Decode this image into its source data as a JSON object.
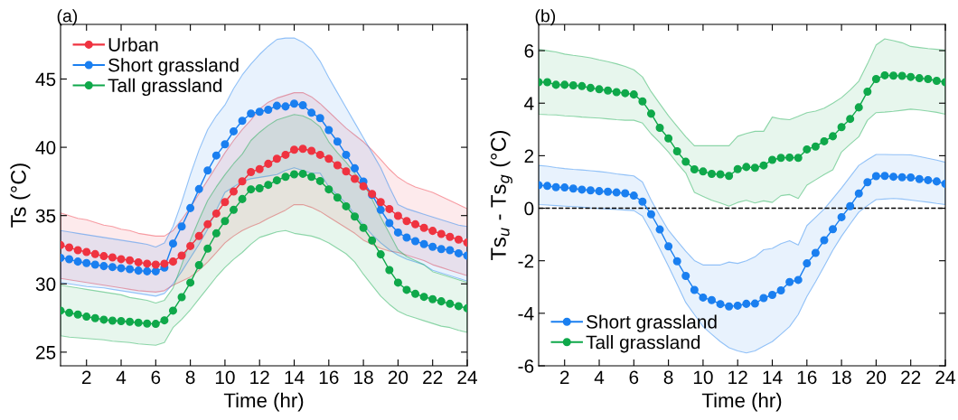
{
  "chart_data": [
    {
      "type": "line",
      "title": "(a)",
      "xlabel": "Time (hr)",
      "ylabel": "Ts (°C)",
      "legend": "top left",
      "marker": "circle",
      "line_style": "solid",
      "grid": false,
      "xlim": [
        0.5,
        24
      ],
      "xticks": [
        2,
        4,
        6,
        8,
        10,
        12,
        14,
        16,
        18,
        20,
        22,
        24
      ],
      "ylim": [
        24,
        49
      ],
      "yticks": [
        25,
        30,
        35,
        40,
        45
      ],
      "x": [
        0.5,
        1,
        1.5,
        2,
        2.5,
        3,
        3.5,
        4,
        4.5,
        5,
        5.5,
        6,
        6.5,
        7,
        7.5,
        8,
        8.5,
        9,
        9.5,
        10,
        10.5,
        11,
        11.5,
        12,
        12.5,
        13,
        13.5,
        14,
        14.5,
        15,
        15.5,
        16,
        16.5,
        17,
        17.5,
        18,
        18.5,
        19,
        19.5,
        20,
        20.5,
        21,
        21.5,
        22,
        22.5,
        23,
        23.5,
        24
      ],
      "series": [
        {
          "name": "Urban",
          "color": "#ef3340",
          "values": [
            32.84,
            32.66,
            32.47,
            32.33,
            32.18,
            32.03,
            31.94,
            31.81,
            31.72,
            31.58,
            31.48,
            31.41,
            31.48,
            31.63,
            32.07,
            32.77,
            33.5,
            34.36,
            35.15,
            35.99,
            36.76,
            37.51,
            38.19,
            38.4,
            38.79,
            39.16,
            39.45,
            39.82,
            39.89,
            39.74,
            39.45,
            39.16,
            38.68,
            38.24,
            37.69,
            37.14,
            36.59,
            35.99,
            35.48,
            34.98,
            34.6,
            34.36,
            34.1,
            33.88,
            33.66,
            33.44,
            33.24,
            33.02
          ],
          "upper": [
            35.2,
            35.0,
            34.8,
            34.7,
            34.5,
            34.3,
            34.2,
            34.0,
            33.9,
            33.7,
            33.6,
            33.5,
            33.5,
            33.9,
            34.7,
            35.6,
            36.6,
            37.6,
            38.6,
            39.6,
            40.5,
            41.3,
            42.0,
            42.8,
            43.3,
            43.6,
            43.8,
            44.0,
            44.0,
            43.7,
            43.2,
            42.6,
            42.0,
            41.4,
            40.9,
            40.4,
            39.8,
            39.1,
            38.4,
            37.8,
            37.4,
            37.1,
            36.9,
            36.7,
            36.4,
            36.1,
            35.8,
            35.5
          ],
          "lower": [
            30.4,
            30.3,
            30.2,
            30.1,
            30.0,
            29.9,
            29.8,
            29.7,
            29.6,
            29.5,
            29.45,
            29.4,
            29.5,
            29.9,
            30.2,
            30.5,
            31.0,
            31.6,
            32.3,
            33.0,
            33.5,
            33.9,
            34.2,
            34.45,
            34.8,
            35.1,
            35.4,
            35.8,
            35.8,
            35.6,
            35.3,
            34.9,
            34.5,
            34.1,
            33.7,
            33.2,
            32.9,
            32.6,
            32.4,
            32.3,
            32.1,
            31.9,
            31.7,
            31.4,
            31.2,
            31.0,
            30.8,
            30.6
          ]
        },
        {
          "name": "Short grassland",
          "color": "#1a7ff0",
          "values": [
            31.9,
            31.8,
            31.63,
            31.52,
            31.41,
            31.3,
            31.23,
            31.15,
            31.08,
            30.97,
            30.92,
            30.92,
            31.19,
            32.95,
            34.2,
            35.55,
            36.94,
            38.3,
            39.4,
            40.22,
            41.17,
            41.94,
            42.47,
            42.6,
            42.75,
            43.04,
            42.99,
            43.2,
            43.08,
            42.53,
            42.14,
            41.26,
            40.42,
            39.45,
            38.46,
            37.49,
            36.52,
            35.42,
            34.45,
            33.76,
            33.39,
            33.13,
            32.91,
            32.71,
            32.55,
            32.47,
            32.24,
            32.07
          ],
          "upper": [
            33.9,
            33.8,
            33.7,
            33.6,
            33.5,
            33.4,
            33.3,
            33.2,
            33.1,
            33.0,
            32.9,
            32.7,
            33.0,
            34.2,
            36.0,
            38.0,
            39.8,
            41.3,
            42.3,
            43.1,
            44.3,
            45.3,
            46.1,
            46.8,
            47.4,
            47.9,
            48.0,
            48.0,
            47.7,
            47.2,
            46.3,
            45.1,
            44.0,
            42.9,
            41.8,
            40.7,
            39.6,
            38.5,
            37.1,
            35.8,
            35.5,
            35.3,
            35.1,
            34.9,
            34.7,
            34.5,
            34.3,
            34.2
          ],
          "lower": [
            30.1,
            30.0,
            29.9,
            29.8,
            29.75,
            29.7,
            29.6,
            29.5,
            29.4,
            29.3,
            29.2,
            29.1,
            29.3,
            30.0,
            30.9,
            31.9,
            32.9,
            34.0,
            35.4,
            36.7,
            37.1,
            37.5,
            37.7,
            37.8,
            37.9,
            38.0,
            38.3,
            38.5,
            38.3,
            38.1,
            38.1,
            37.1,
            36.5,
            35.9,
            35.1,
            34.3,
            33.6,
            33.0,
            32.5,
            32.1,
            31.8,
            31.6,
            31.4,
            31.0,
            30.8,
            30.6,
            30.4,
            30.2
          ]
        },
        {
          "name": "Tall grassland",
          "color": "#0fa84a",
          "values": [
            28.04,
            27.88,
            27.75,
            27.6,
            27.49,
            27.38,
            27.31,
            27.27,
            27.22,
            27.16,
            27.09,
            27.07,
            27.33,
            28.04,
            29.03,
            30.09,
            31.37,
            32.58,
            33.7,
            34.6,
            35.42,
            36.21,
            36.92,
            37.0,
            37.25,
            37.58,
            37.84,
            38.02,
            38.06,
            37.84,
            37.53,
            36.92,
            36.32,
            35.68,
            34.93,
            34.1,
            33.17,
            32.16,
            31.01,
            30.09,
            29.56,
            29.27,
            29.05,
            28.88,
            28.72,
            28.54,
            28.37,
            28.21
          ],
          "upper": [
            29.9,
            29.8,
            29.7,
            29.6,
            29.5,
            29.4,
            29.3,
            29.2,
            29.0,
            28.9,
            28.8,
            28.6,
            28.8,
            29.7,
            31.4,
            33.2,
            34.7,
            36.1,
            37.1,
            38.0,
            38.8,
            39.5,
            40.5,
            41.1,
            41.6,
            42.0,
            42.2,
            42.4,
            42.3,
            42.0,
            41.5,
            40.4,
            39.6,
            38.9,
            38.1,
            37.4,
            36.2,
            34.9,
            33.7,
            32.5,
            32.0,
            31.7,
            31.4,
            30.9,
            30.7,
            30.5,
            30.3,
            30.1
          ],
          "lower": [
            26.2,
            26.1,
            26.05,
            26.0,
            25.95,
            25.9,
            25.8,
            25.75,
            25.7,
            25.6,
            25.55,
            25.5,
            25.7,
            26.8,
            27.4,
            28.1,
            28.9,
            29.7,
            30.5,
            31.2,
            31.8,
            32.3,
            32.9,
            33.4,
            33.6,
            33.8,
            33.9,
            33.7,
            33.6,
            33.5,
            33.3,
            33.0,
            32.6,
            32.2,
            31.6,
            30.7,
            29.9,
            29.1,
            28.5,
            28.0,
            27.7,
            27.5,
            27.3,
            27.1,
            26.9,
            26.8,
            26.6,
            26.45
          ]
        }
      ]
    },
    {
      "type": "line",
      "title": "(b)",
      "xlabel": "Time (hr)",
      "ylabel": "Ts$_{u}$ - Ts$_{g}$ (°C)",
      "legend": "bottom left",
      "marker": "circle",
      "line_style": "solid",
      "grid": false,
      "xlim": [
        0.5,
        24
      ],
      "xticks": [
        2,
        4,
        6,
        8,
        10,
        12,
        14,
        16,
        18,
        20,
        22,
        24
      ],
      "ylim": [
        -6,
        7
      ],
      "yticks": [
        -6,
        -4,
        -2,
        0,
        2,
        4,
        6
      ],
      "ref_lines": [
        {
          "axis": "y",
          "value": 0,
          "label": null,
          "color": "#000000",
          "line_style": "dashed"
        }
      ],
      "x": [
        0.5,
        1,
        1.5,
        2,
        2.5,
        3,
        3.5,
        4,
        4.5,
        5,
        5.5,
        6,
        6.5,
        7,
        7.5,
        8,
        8.5,
        9,
        9.5,
        10,
        10.5,
        11,
        11.5,
        12,
        12.5,
        13,
        13.5,
        14,
        14.5,
        15,
        15.5,
        16,
        16.5,
        17,
        17.5,
        18,
        18.5,
        19,
        19.5,
        20,
        20.5,
        21,
        21.5,
        22,
        22.5,
        23,
        23.5,
        24
      ],
      "series": [
        {
          "name": "Short grassland",
          "color": "#1a7ff0",
          "values": [
            0.88,
            0.85,
            0.8,
            0.79,
            0.75,
            0.71,
            0.68,
            0.65,
            0.63,
            0.6,
            0.57,
            0.48,
            0.25,
            -0.23,
            -0.81,
            -1.45,
            -2.02,
            -2.58,
            -3.11,
            -3.4,
            -3.5,
            -3.65,
            -3.74,
            -3.71,
            -3.64,
            -3.63,
            -3.42,
            -3.3,
            -3.13,
            -2.81,
            -2.73,
            -2.1,
            -1.7,
            -1.22,
            -0.8,
            -0.34,
            0.08,
            0.56,
            0.99,
            1.22,
            1.23,
            1.2,
            1.18,
            1.17,
            1.11,
            1.07,
            1.02,
            0.93
          ],
          "upper": [
            1.63,
            1.6,
            1.55,
            1.51,
            1.48,
            1.46,
            1.43,
            1.4,
            1.36,
            1.31,
            1.27,
            1.23,
            1.0,
            0.31,
            -0.28,
            -0.84,
            -1.24,
            -1.64,
            -1.99,
            -2.16,
            -2.16,
            -2.16,
            -2.05,
            -2.1,
            -2.0,
            -1.85,
            -1.58,
            -1.53,
            -1.35,
            -1.24,
            -1.4,
            -0.66,
            -0.35,
            -0.03,
            0.37,
            0.77,
            1.2,
            1.63,
            1.85,
            2.05,
            2.05,
            2.04,
            2.04,
            2.03,
            1.97,
            1.9,
            1.83,
            1.75
          ],
          "lower": [
            0.14,
            0.12,
            0.1,
            0.08,
            0.06,
            0.04,
            0.01,
            -0.01,
            -0.03,
            -0.05,
            -0.07,
            -0.09,
            -0.3,
            -0.89,
            -1.55,
            -2.21,
            -2.9,
            -3.59,
            -4.05,
            -4.51,
            -4.8,
            -5.08,
            -5.31,
            -5.43,
            -5.51,
            -5.43,
            -5.25,
            -5.08,
            -4.8,
            -4.51,
            -4.05,
            -3.36,
            -2.8,
            -2.21,
            -1.6,
            -1.07,
            -0.6,
            -0.15,
            0.1,
            0.33,
            0.35,
            0.37,
            0.35,
            0.31,
            0.27,
            0.23,
            0.18,
            0.14
          ]
        },
        {
          "name": "Tall grassland",
          "color": "#0fa84a",
          "values": [
            4.8,
            4.8,
            4.7,
            4.7,
            4.68,
            4.65,
            4.58,
            4.53,
            4.48,
            4.42,
            4.38,
            4.33,
            4.07,
            3.6,
            3.06,
            2.66,
            2.17,
            1.77,
            1.48,
            1.4,
            1.31,
            1.29,
            1.23,
            1.49,
            1.57,
            1.54,
            1.63,
            1.84,
            1.92,
            1.93,
            1.92,
            2.24,
            2.35,
            2.55,
            2.74,
            3.09,
            3.4,
            3.84,
            4.44,
            4.92,
            5.06,
            5.05,
            5.04,
            5.0,
            4.95,
            4.92,
            4.85,
            4.8
          ],
          "upper": [
            6.05,
            6.0,
            5.95,
            5.87,
            5.82,
            5.78,
            5.73,
            5.65,
            5.58,
            5.5,
            5.4,
            5.27,
            5.0,
            4.44,
            3.98,
            3.52,
            3.12,
            2.72,
            2.38,
            2.38,
            2.38,
            2.38,
            2.38,
            2.74,
            2.85,
            2.93,
            2.93,
            3.47,
            3.4,
            3.37,
            3.5,
            3.64,
            3.7,
            3.81,
            4.0,
            4.21,
            4.5,
            4.84,
            5.5,
            6.22,
            6.45,
            6.38,
            6.3,
            6.16,
            6.12,
            6.08,
            6.05,
            6.02
          ],
          "lower": [
            3.58,
            3.56,
            3.55,
            3.52,
            3.5,
            3.47,
            3.45,
            3.43,
            3.4,
            3.37,
            3.35,
            3.35,
            3.24,
            2.83,
            2.5,
            2.14,
            1.72,
            1.34,
            0.6,
            0.45,
            0.3,
            0.2,
            0.08,
            0.22,
            0.3,
            0.2,
            0.28,
            0.22,
            0.48,
            0.52,
            0.37,
            0.88,
            1.08,
            1.28,
            1.46,
            2.14,
            2.44,
            2.72,
            3.35,
            3.64,
            3.66,
            3.69,
            3.73,
            3.77,
            3.74,
            3.7,
            3.65,
            3.58
          ]
        }
      ]
    }
  ]
}
